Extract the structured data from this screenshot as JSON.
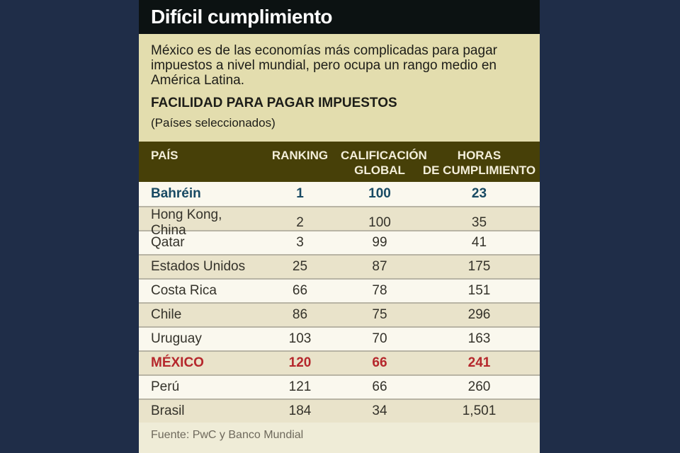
{
  "page": {
    "title": "Difícil cumplimiento",
    "intro": "México es de las economías más complicadas para pagar impuestos a nivel mundial, pero ocupa un rango medio en América Latina.",
    "heading": "FACILIDAD PARA PAGAR IMPUESTOS",
    "subheading": "(Países seleccionados)",
    "source": "Fuente: PwC y Banco Mundial"
  },
  "colors": {
    "background": "#1f2d48",
    "title_bar": "#0c1212",
    "title_text": "#ffffff",
    "panel_bg": "#e3ddae",
    "table_header_bg": "#474008",
    "table_header_text": "#f3eeda",
    "row_light": "#faf8ee",
    "row_beige": "#e9e3ca",
    "row_separator": "#b8b4a4",
    "row_text": "#34322a",
    "highlight_blue": "#184a63",
    "highlight_red": "#b5272c",
    "footer_bg": "#efecd7",
    "source_text": "#6e695c"
  },
  "chart_data": {
    "type": "table",
    "title": "FACILIDAD PARA PAGAR IMPUESTOS",
    "subtitle": "(Países seleccionados)",
    "source": "Fuente: PwC y Banco Mundial",
    "columns": [
      {
        "id": "pais",
        "line1": "PAÍS",
        "line2": ""
      },
      {
        "id": "ranking",
        "line1": "RANKING",
        "line2": ""
      },
      {
        "id": "calificacion",
        "line1": "CALIFICACIÓN",
        "line2": "GLOBAL"
      },
      {
        "id": "horas",
        "line1": "HORAS",
        "line2": "DE CUMPLIMIENTO"
      }
    ],
    "rows": [
      {
        "pais": "Bahréin",
        "ranking": "1",
        "calificacion": "100",
        "horas": "23",
        "highlight": "blue"
      },
      {
        "pais": "Hong Kong, China",
        "ranking": "2",
        "calificacion": "100",
        "horas": "35",
        "highlight": "none"
      },
      {
        "pais": "Qatar",
        "ranking": "3",
        "calificacion": "99",
        "horas": "41",
        "highlight": "none"
      },
      {
        "pais": "Estados Unidos",
        "ranking": "25",
        "calificacion": "87",
        "horas": "175",
        "highlight": "none"
      },
      {
        "pais": "Costa Rica",
        "ranking": "66",
        "calificacion": "78",
        "horas": "151",
        "highlight": "none"
      },
      {
        "pais": "Chile",
        "ranking": "86",
        "calificacion": "75",
        "horas": "296",
        "highlight": "none"
      },
      {
        "pais": "Uruguay",
        "ranking": "103",
        "calificacion": "70",
        "horas": "163",
        "highlight": "none"
      },
      {
        "pais": "MÉXICO",
        "ranking": "120",
        "calificacion": "66",
        "horas": "241",
        "highlight": "red"
      },
      {
        "pais": "Perú",
        "ranking": "121",
        "calificacion": "66",
        "horas": "260",
        "highlight": "none"
      },
      {
        "pais": "Brasil",
        "ranking": "184",
        "calificacion": "34",
        "horas": "1,501",
        "highlight": "none"
      }
    ]
  }
}
